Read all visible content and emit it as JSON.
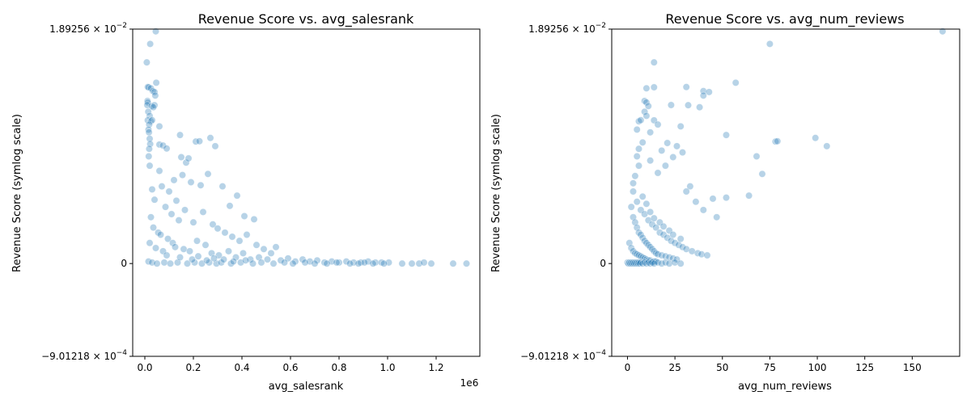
{
  "colors": {
    "marker": "#1f77b4",
    "text": "#000000",
    "background": "#ffffff"
  },
  "chart_data": [
    {
      "type": "scatter",
      "title": "Revenue Score vs. avg_salesrank",
      "xlabel": "avg_salesrank",
      "ylabel": "Revenue Score (symlog scale)",
      "xlim": [
        -50000,
        1380000
      ],
      "x_offset_label": "1e6",
      "x_ticks": [
        {
          "value": 0,
          "label": "0.0"
        },
        {
          "value": 200000,
          "label": "0.2"
        },
        {
          "value": 400000,
          "label": "0.4"
        },
        {
          "value": 600000,
          "label": "0.6"
        },
        {
          "value": 800000,
          "label": "0.8"
        },
        {
          "value": 1000000,
          "label": "1.0"
        },
        {
          "value": 1200000,
          "label": "1.2"
        }
      ],
      "y_scale": "symlog",
      "ylim": [
        -0.000901218,
        0.0189256
      ],
      "y_ticks": [
        {
          "value": -0.000901218,
          "mantissa": "−9.01218",
          "exponent": "−4"
        },
        {
          "value": 0,
          "label": "0"
        },
        {
          "value": 0.0189256,
          "mantissa": "1.89256",
          "exponent": "−2"
        }
      ],
      "grid": false,
      "points": [
        [
          45000,
          0.01799
        ],
        [
          22000,
          0.01357
        ],
        [
          8000,
          0.00899
        ],
        [
          47000,
          0.0057
        ],
        [
          12000,
          0.00518
        ],
        [
          15000,
          0.00515
        ],
        [
          25000,
          0.00503
        ],
        [
          33000,
          0.00473
        ],
        [
          40000,
          0.00463
        ],
        [
          43000,
          0.00428
        ],
        [
          11000,
          0.0038
        ],
        [
          12000,
          0.00367
        ],
        [
          10000,
          0.00346
        ],
        [
          28000,
          0.00338
        ],
        [
          40000,
          0.00345
        ],
        [
          35000,
          0.0033
        ],
        [
          14000,
          0.00298
        ],
        [
          20000,
          0.00272
        ],
        [
          12000,
          0.00246
        ],
        [
          25000,
          0.00241
        ],
        [
          30000,
          0.00247
        ],
        [
          18000,
          0.00224
        ],
        [
          60000,
          0.00215
        ],
        [
          15000,
          0.002
        ],
        [
          17000,
          0.00188
        ],
        [
          145000,
          0.00177
        ],
        [
          270000,
          0.00166
        ],
        [
          210000,
          0.00153
        ],
        [
          225000,
          0.00154
        ],
        [
          290000,
          0.00138
        ],
        [
          20000,
          0.00163
        ],
        [
          22000,
          0.00145
        ],
        [
          18000,
          0.0013
        ],
        [
          16000,
          0.0011
        ],
        [
          60000,
          0.00143
        ],
        [
          75000,
          0.0014
        ],
        [
          90000,
          0.00131
        ],
        [
          150000,
          0.00108
        ],
        [
          170000,
          0.00098
        ],
        [
          155000,
          0.00086
        ],
        [
          180000,
          0.00105
        ],
        [
          190000,
          0.00079
        ],
        [
          260000,
          0.00087
        ],
        [
          230000,
          0.00076
        ],
        [
          320000,
          0.00075
        ],
        [
          380000,
          0.00066
        ],
        [
          350000,
          0.00056
        ],
        [
          410000,
          0.00046
        ],
        [
          450000,
          0.00043
        ],
        [
          60000,
          0.0009
        ],
        [
          70000,
          0.00075
        ],
        [
          100000,
          0.0007
        ],
        [
          120000,
          0.00081
        ],
        [
          130000,
          0.00061
        ],
        [
          20000,
          0.00095
        ],
        [
          30000,
          0.00072
        ],
        [
          40000,
          0.00062
        ],
        [
          85000,
          0.00055
        ],
        [
          110000,
          0.00048
        ],
        [
          140000,
          0.00042
        ],
        [
          165000,
          0.00052
        ],
        [
          200000,
          0.0004
        ],
        [
          240000,
          0.0005
        ],
        [
          280000,
          0.00038
        ],
        [
          300000,
          0.00034
        ],
        [
          330000,
          0.0003
        ],
        [
          360000,
          0.00026
        ],
        [
          390000,
          0.00022
        ],
        [
          420000,
          0.00028
        ],
        [
          460000,
          0.00018
        ],
        [
          490000,
          0.00014
        ],
        [
          520000,
          0.0001
        ],
        [
          540000,
          0.00016
        ],
        [
          25000,
          0.00045
        ],
        [
          35000,
          0.00035
        ],
        [
          55000,
          0.0003
        ],
        [
          65000,
          0.00028
        ],
        [
          95000,
          0.00024
        ],
        [
          115000,
          0.0002
        ],
        [
          125000,
          0.00016
        ],
        [
          160000,
          0.00014
        ],
        [
          185000,
          0.00012
        ],
        [
          215000,
          0.00022
        ],
        [
          250000,
          0.00018
        ],
        [
          275000,
          0.0001
        ],
        [
          305000,
          8e-05
        ],
        [
          345000,
          0.00012
        ],
        [
          375000,
          6e-05
        ],
        [
          405000,
          0.0001
        ],
        [
          435000,
          4e-05
        ],
        [
          470000,
          6e-05
        ],
        [
          505000,
          4e-05
        ],
        [
          560000,
          3e-05
        ],
        [
          590000,
          5e-05
        ],
        [
          620000,
          2e-05
        ],
        [
          650000,
          4e-05
        ],
        [
          680000,
          2e-05
        ],
        [
          710000,
          3e-05
        ],
        [
          740000,
          1e-05
        ],
        [
          770000,
          2e-05
        ],
        [
          800000,
          1e-05
        ],
        [
          830000,
          2e-05
        ],
        [
          860000,
          1e-05
        ],
        [
          890000,
          1e-05
        ],
        [
          920000,
          2e-05
        ],
        [
          950000,
          1e-05
        ],
        [
          975000,
          1e-05
        ],
        [
          1005000,
          1e-05
        ],
        [
          1060000,
          0.0
        ],
        [
          1100000,
          0.0
        ],
        [
          1130000,
          0.0
        ],
        [
          1150000,
          1e-05
        ],
        [
          1180000,
          0.0
        ],
        [
          1270000,
          0.0
        ],
        [
          1325000,
          0.0
        ],
        [
          15000,
          2e-05
        ],
        [
          30000,
          1e-05
        ],
        [
          50000,
          0.0
        ],
        [
          80000,
          1e-05
        ],
        [
          105000,
          0.0
        ],
        [
          135000,
          1e-05
        ],
        [
          175000,
          0.0
        ],
        [
          205000,
          1e-05
        ],
        [
          235000,
          0.0
        ],
        [
          265000,
          1e-05
        ],
        [
          295000,
          0.0
        ],
        [
          315000,
          1e-05
        ],
        [
          355000,
          0.0
        ],
        [
          395000,
          1e-05
        ],
        [
          445000,
          0.0
        ],
        [
          480000,
          1e-05
        ],
        [
          530000,
          0.0
        ],
        [
          575000,
          1e-05
        ],
        [
          610000,
          0.0
        ],
        [
          660000,
          1e-05
        ],
        [
          700000,
          0.0
        ],
        [
          750000,
          0.0
        ],
        [
          790000,
          1e-05
        ],
        [
          845000,
          0.0
        ],
        [
          880000,
          0.0
        ],
        [
          905000,
          1e-05
        ],
        [
          940000,
          0.0
        ],
        [
          985000,
          0.0
        ],
        [
          20000,
          0.0002
        ],
        [
          45000,
          0.00015
        ],
        [
          75000,
          0.00012
        ],
        [
          90000,
          8e-05
        ],
        [
          145000,
          6e-05
        ],
        [
          195000,
          4e-05
        ],
        [
          220000,
          7e-05
        ],
        [
          255000,
          3e-05
        ],
        [
          285000,
          5e-05
        ],
        [
          325000,
          4e-05
        ],
        [
          365000,
          2e-05
        ],
        [
          415000,
          3e-05
        ]
      ]
    },
    {
      "type": "scatter",
      "title": "Revenue Score vs. avg_num_reviews",
      "xlabel": "avg_num_reviews",
      "ylabel": "Revenue Score (symlog scale)",
      "xlim": [
        -8.3,
        175
      ],
      "x_ticks": [
        {
          "value": 0,
          "label": "0"
        },
        {
          "value": 25,
          "label": "25"
        },
        {
          "value": 50,
          "label": "50"
        },
        {
          "value": 75,
          "label": "75"
        },
        {
          "value": 100,
          "label": "100"
        },
        {
          "value": 125,
          "label": "125"
        },
        {
          "value": 150,
          "label": "150"
        }
      ],
      "y_scale": "symlog",
      "ylim": [
        -0.000901218,
        0.0189256
      ],
      "y_ticks": [
        {
          "value": -0.000901218,
          "mantissa": "−9.01218",
          "exponent": "−4"
        },
        {
          "value": 0,
          "label": "0"
        },
        {
          "value": 0.0189256,
          "mantissa": "1.89256",
          "exponent": "−2"
        }
      ],
      "grid": false,
      "points": [
        [
          166,
          0.01799
        ],
        [
          75,
          0.01357
        ],
        [
          14,
          0.00899
        ],
        [
          57,
          0.0057
        ],
        [
          31,
          0.00518
        ],
        [
          14,
          0.00515
        ],
        [
          10,
          0.00503
        ],
        [
          40,
          0.00473
        ],
        [
          43,
          0.00463
        ],
        [
          40,
          0.00428
        ],
        [
          9,
          0.0038
        ],
        [
          10,
          0.00367
        ],
        [
          23,
          0.00346
        ],
        [
          11,
          0.00338
        ],
        [
          32,
          0.00345
        ],
        [
          38,
          0.0033
        ],
        [
          9,
          0.00298
        ],
        [
          10,
          0.00272
        ],
        [
          14,
          0.00246
        ],
        [
          6,
          0.00241
        ],
        [
          7,
          0.00247
        ],
        [
          16,
          0.00224
        ],
        [
          28,
          0.00215
        ],
        [
          5,
          0.002
        ],
        [
          12,
          0.00188
        ],
        [
          52,
          0.00177
        ],
        [
          99,
          0.00166
        ],
        [
          78,
          0.00153
        ],
        [
          79,
          0.00154
        ],
        [
          105,
          0.00138
        ],
        [
          68,
          0.0011
        ],
        [
          71,
          0.00087
        ],
        [
          64,
          0.00066
        ],
        [
          52,
          0.00064
        ],
        [
          45,
          0.00063
        ],
        [
          47,
          0.00045
        ],
        [
          40,
          0.00052
        ],
        [
          36,
          0.0006
        ],
        [
          33,
          0.00075
        ],
        [
          31,
          0.0007
        ],
        [
          29,
          0.0012
        ],
        [
          24,
          0.00108
        ],
        [
          21,
          0.00148
        ],
        [
          18,
          0.00125
        ],
        [
          26,
          0.00138
        ],
        [
          20,
          0.00095
        ],
        [
          16,
          0.00088
        ],
        [
          12,
          0.001
        ],
        [
          8,
          0.0015
        ],
        [
          6,
          0.0013
        ],
        [
          4,
          0.00085
        ],
        [
          3,
          0.00078
        ],
        [
          5,
          0.0006
        ],
        [
          7,
          0.00052
        ],
        [
          9,
          0.00048
        ],
        [
          11,
          0.00042
        ],
        [
          13,
          0.00038
        ],
        [
          15,
          0.00035
        ],
        [
          17,
          0.0003
        ],
        [
          19,
          0.00028
        ],
        [
          21,
          0.00025
        ],
        [
          23,
          0.00022
        ],
        [
          25,
          0.0002
        ],
        [
          27,
          0.00018
        ],
        [
          29,
          0.00016
        ],
        [
          31,
          0.00014
        ],
        [
          34,
          0.00012
        ],
        [
          37,
          0.0001
        ],
        [
          39,
          9e-05
        ],
        [
          42,
          8e-05
        ],
        [
          2,
          0.00055
        ],
        [
          3,
          0.00045
        ],
        [
          4,
          0.0004
        ],
        [
          5,
          0.00035
        ],
        [
          6,
          0.0003
        ],
        [
          7,
          0.00028
        ],
        [
          8,
          0.00025
        ],
        [
          9,
          0.00022
        ],
        [
          10,
          0.0002
        ],
        [
          11,
          0.00018
        ],
        [
          12,
          0.00016
        ],
        [
          13,
          0.00014
        ],
        [
          14,
          0.00012
        ],
        [
          15,
          0.0001
        ],
        [
          16,
          9e-05
        ],
        [
          18,
          8e-05
        ],
        [
          20,
          7e-05
        ],
        [
          22,
          6e-05
        ],
        [
          24,
          5e-05
        ],
        [
          26,
          4e-05
        ],
        [
          1,
          0.0002
        ],
        [
          2,
          0.00015
        ],
        [
          3,
          0.00012
        ],
        [
          4,
          0.0001
        ],
        [
          5,
          9e-05
        ],
        [
          6,
          8e-05
        ],
        [
          7,
          7e-05
        ],
        [
          8,
          6e-05
        ],
        [
          9,
          5e-05
        ],
        [
          10,
          4e-05
        ],
        [
          11,
          3e-05
        ],
        [
          12,
          3e-05
        ],
        [
          13,
          2e-05
        ],
        [
          14,
          2e-05
        ],
        [
          15,
          2e-05
        ],
        [
          0,
          1e-05
        ],
        [
          0.5,
          0.0
        ],
        [
          1,
          1e-05
        ],
        [
          1.5,
          0.0
        ],
        [
          2,
          1e-05
        ],
        [
          2.5,
          0.0
        ],
        [
          3,
          1e-05
        ],
        [
          3.5,
          0.0
        ],
        [
          4,
          1e-05
        ],
        [
          4.5,
          0.0
        ],
        [
          5,
          1e-05
        ],
        [
          5.5,
          0.0
        ],
        [
          6,
          1e-05
        ],
        [
          6.5,
          0.0
        ],
        [
          7,
          1e-05
        ],
        [
          8,
          0.0
        ],
        [
          9,
          1e-05
        ],
        [
          10,
          0.0
        ],
        [
          11,
          1e-05
        ],
        [
          12,
          0.0
        ],
        [
          13,
          1e-05
        ],
        [
          14,
          0.0
        ],
        [
          16,
          1e-05
        ],
        [
          18,
          0.0
        ],
        [
          20,
          1e-05
        ],
        [
          22,
          0.0
        ],
        [
          25,
          1e-05
        ],
        [
          28,
          0.0
        ],
        [
          3,
          0.0007
        ],
        [
          5,
          0.0011
        ],
        [
          6,
          0.00095
        ],
        [
          8,
          0.00065
        ],
        [
          10,
          0.00058
        ],
        [
          12,
          0.0005
        ],
        [
          14,
          0.00044
        ],
        [
          17,
          0.0004
        ],
        [
          19,
          0.00036
        ],
        [
          22,
          0.00032
        ],
        [
          24,
          0.00028
        ],
        [
          28,
          0.00024
        ]
      ]
    }
  ]
}
